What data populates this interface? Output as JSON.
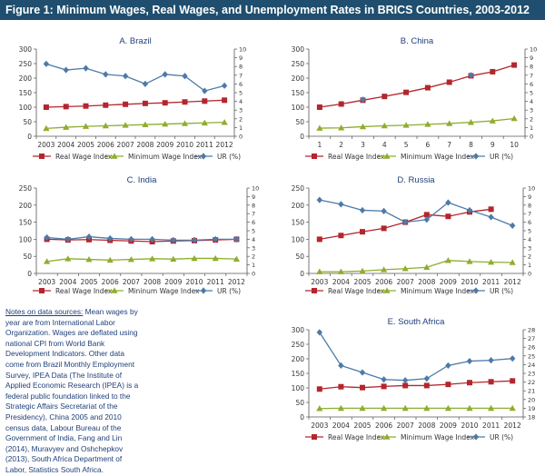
{
  "figure_title": "Figure 1: Minimum Wages, Real Wages, and Unemployment Rates in BRICS Countries, 2003-2012",
  "legend_labels": {
    "real": "Real Wage Index",
    "min": "Minimum Wage Index",
    "min_india": "Mininum Wage Index",
    "ur": "UR (%)"
  },
  "colors": {
    "real": "#b3262d",
    "min": "#8fad2e",
    "ur": "#4d7aa8",
    "title_bg": "#1f4e6e",
    "note": "#1f3f7a"
  },
  "notes": {
    "heading": "Notes on data sources:",
    "body": " Mean wages by year are from International Labor Organization. Wages are deflated using national CPI from World Bank Development Indicators. Other data come from Brazil Monthly Employment Survey, IPEA Data (The Institute of Applied Economic Research (IPEA) is a federal public foundation linked to the Strategic Affairs Secretariat of the Presidency), China 2005 and 2010 census data, Labour Bureau of the Government of India, Fang and Lin (2014), Muravyev and Oshchepkov (2013), South Africa Department of Labor, Statistics South Africa."
  },
  "chart_data": [
    {
      "type": "line",
      "title": "A. Brazil",
      "x": [
        "2003",
        "2004",
        "2005",
        "2006",
        "2007",
        "2008",
        "2009",
        "2010",
        "2011",
        "2012"
      ],
      "ylim_left": [
        0,
        300
      ],
      "yticks_left": [
        0,
        50,
        100,
        150,
        200,
        250,
        300
      ],
      "ylim_right": [
        0,
        10
      ],
      "yticks_right": [
        0,
        1,
        2,
        3,
        4,
        5,
        6,
        7,
        8,
        9,
        10
      ],
      "grid": false,
      "legend": "bottom",
      "series": [
        {
          "name": "Real Wage Index",
          "key": "real",
          "axis": "left",
          "marker": "square",
          "values": [
            100,
            102,
            104,
            107,
            110,
            113,
            115,
            118,
            121,
            124
          ]
        },
        {
          "name": "Minimum Wage Index",
          "key": "min",
          "axis": "left",
          "marker": "triangle",
          "values": [
            27,
            31,
            34,
            36,
            38,
            40,
            42,
            44,
            46,
            48
          ]
        },
        {
          "name": "UR (%)",
          "key": "ur",
          "axis": "right",
          "marker": "diamond",
          "values": [
            8.3,
            7.6,
            7.8,
            7.1,
            6.9,
            6.0,
            7.1,
            6.9,
            5.2,
            5.8
          ]
        }
      ]
    },
    {
      "type": "line",
      "title": "B. China",
      "x": [
        "1",
        "2",
        "3",
        "4",
        "5",
        "6",
        "7",
        "8",
        "9",
        "10"
      ],
      "ylim_left": [
        0,
        300
      ],
      "yticks_left": [
        0,
        50,
        100,
        150,
        200,
        250,
        300
      ],
      "ylim_right": [
        0,
        10
      ],
      "yticks_right": [
        0,
        1,
        2,
        3,
        4,
        5,
        6,
        7,
        8,
        9,
        10
      ],
      "grid": false,
      "legend": "bottom",
      "series": [
        {
          "name": "Real Wage Index",
          "key": "real",
          "axis": "left",
          "marker": "square",
          "values": [
            100,
            111,
            124,
            137,
            151,
            167,
            186,
            208,
            222,
            245
          ]
        },
        {
          "name": "Minimum Wage Index",
          "key": "min",
          "axis": "left",
          "marker": "triangle",
          "values": [
            28,
            29,
            33,
            36,
            38,
            41,
            44,
            48,
            53,
            61
          ]
        },
        {
          "name": "UR (%)",
          "key": "ur",
          "axis": "right",
          "marker": "diamond",
          "values": [
            null,
            null,
            4.2,
            null,
            null,
            null,
            null,
            7.0,
            null,
            null
          ]
        }
      ]
    },
    {
      "type": "line",
      "title": "C. India",
      "x": [
        "2003",
        "2004",
        "2005",
        "2006",
        "2007",
        "2008",
        "2009",
        "2010",
        "2011",
        "2012"
      ],
      "ylim_left": [
        0,
        250
      ],
      "yticks_left": [
        0,
        50,
        100,
        150,
        200,
        250
      ],
      "ylim_right": [
        0,
        10
      ],
      "yticks_right": [
        0,
        1,
        2,
        3,
        4,
        5,
        6,
        7,
        8,
        9,
        10
      ],
      "grid": false,
      "legend": "bottom",
      "series": [
        {
          "name": "Real Wage Index",
          "key": "real",
          "axis": "left",
          "marker": "square",
          "values": [
            100,
            98,
            99,
            97,
            95,
            93,
            95,
            96,
            98,
            100
          ]
        },
        {
          "name": "Mininum Wage Index",
          "key": "min",
          "axis": "left",
          "marker": "triangle",
          "values": [
            35,
            43,
            41,
            39,
            41,
            43,
            42,
            44,
            44,
            42
          ]
        },
        {
          "name": "UR (%)",
          "key": "ur",
          "axis": "right",
          "marker": "diamond",
          "values": [
            4.2,
            4.0,
            4.3,
            4.1,
            4.0,
            4.0,
            3.9,
            3.9,
            4.0,
            4.0
          ]
        }
      ]
    },
    {
      "type": "line",
      "title": "D. Russia",
      "x": [
        "2003",
        "2004",
        "2005",
        "2006",
        "2007",
        "2008",
        "2009",
        "2010",
        "2011",
        "2012"
      ],
      "ylim_left": [
        0,
        250
      ],
      "yticks_left": [
        0,
        50,
        100,
        150,
        200,
        250
      ],
      "ylim_right": [
        0,
        10
      ],
      "yticks_right": [
        0,
        1,
        2,
        3,
        4,
        5,
        6,
        7,
        8,
        9,
        10
      ],
      "grid": false,
      "legend": "bottom",
      "series": [
        {
          "name": "Real Wage Index",
          "key": "real",
          "axis": "left",
          "marker": "square",
          "values": [
            100,
            111,
            122,
            132,
            150,
            172,
            167,
            180,
            188,
            null
          ]
        },
        {
          "name": "Minimum Wage Index",
          "key": "min",
          "axis": "left",
          "marker": "triangle",
          "values": [
            5,
            5,
            7,
            11,
            14,
            18,
            38,
            35,
            33,
            32
          ]
        },
        {
          "name": "UR (%)",
          "key": "ur",
          "axis": "right",
          "marker": "diamond",
          "values": [
            8.6,
            8.1,
            7.4,
            7.3,
            6.0,
            6.3,
            8.3,
            7.4,
            6.6,
            5.6
          ]
        }
      ]
    },
    {
      "type": "line",
      "title": "E. South Africa",
      "x": [
        "2003",
        "2004",
        "2005",
        "2006",
        "2007",
        "2008",
        "2009",
        "2010",
        "2011",
        "2012"
      ],
      "ylim_left": [
        0,
        300
      ],
      "yticks_left": [
        0,
        50,
        100,
        150,
        200,
        250,
        300
      ],
      "ylim_right": [
        18,
        28
      ],
      "yticks_right": [
        18,
        19,
        20,
        21,
        22,
        23,
        24,
        25,
        26,
        27,
        28
      ],
      "grid": false,
      "legend": "bottom",
      "series": [
        {
          "name": "Real Wage Index",
          "key": "real",
          "axis": "left",
          "marker": "square",
          "values": [
            96,
            104,
            101,
            105,
            108,
            108,
            112,
            118,
            121,
            124
          ]
        },
        {
          "name": "Minimum Wage Index",
          "key": "min",
          "axis": "left",
          "marker": "triangle",
          "values": [
            29,
            30,
            30,
            30,
            30,
            30,
            30,
            30,
            30,
            30
          ]
        },
        {
          "name": "UR (%)",
          "key": "ur",
          "axis": "right",
          "marker": "diamond",
          "values": [
            27.7,
            23.9,
            23.1,
            22.3,
            22.2,
            22.4,
            23.9,
            24.4,
            24.5,
            24.7
          ]
        }
      ]
    }
  ]
}
